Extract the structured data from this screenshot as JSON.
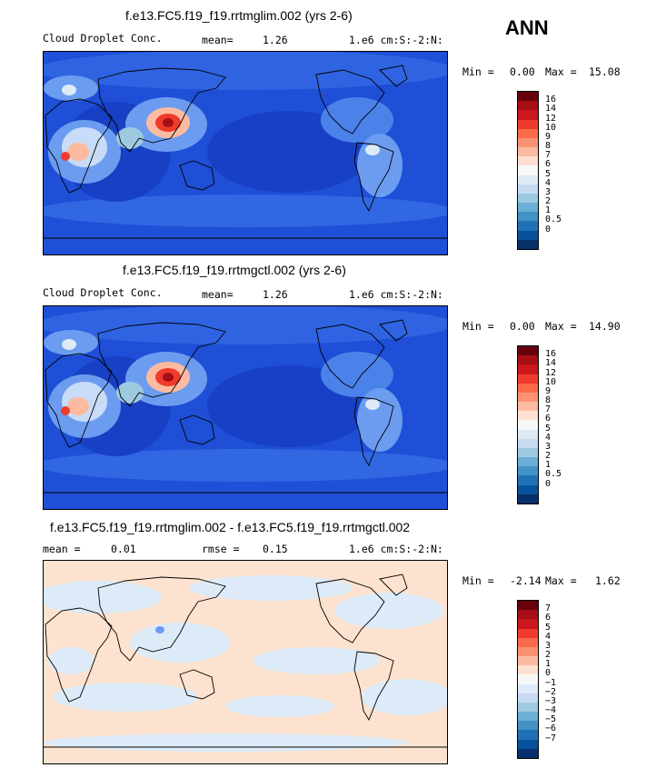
{
  "season": "ANN",
  "panels": [
    {
      "title": "f.e13.FC5.f19_f19.rrtmglim.002 (yrs 2-6)",
      "variable": "Cloud Droplet Conc.",
      "mean_label": "mean=",
      "mean_value": "1.26",
      "units": "1.e6 cm:S:-2:N:",
      "min_label": "Min =",
      "min_value": "0.00",
      "max_label": "Max =",
      "max_value": "15.08",
      "colorbar_labels": [
        "16",
        "14",
        "12",
        "10",
        "9",
        "8",
        "7",
        "6",
        "5",
        "4",
        "3",
        "2",
        "1",
        "0.5",
        "0"
      ]
    },
    {
      "title": "f.e13.FC5.f19_f19.rrtmgctl.002 (yrs 2-6)",
      "variable": "Cloud Droplet Conc.",
      "mean_label": "mean=",
      "mean_value": "1.26",
      "units": "1.e6 cm:S:-2:N:",
      "min_label": "Min =",
      "min_value": "0.00",
      "max_label": "Max =",
      "max_value": "14.90",
      "colorbar_labels": [
        "16",
        "14",
        "12",
        "10",
        "9",
        "8",
        "7",
        "6",
        "5",
        "4",
        "3",
        "2",
        "1",
        "0.5",
        "0"
      ]
    },
    {
      "title": "f.e13.FC5.f19_f19.rrtmglim.002 - f.e13.FC5.f19_f19.rrtmgctl.002",
      "mean_label": "mean =",
      "mean_value": "0.01",
      "rmse_label": "rmse =",
      "rmse_value": "0.15",
      "units": "1.e6 cm:S:-2:N:",
      "min_label": "Min =",
      "min_value": "-2.14",
      "max_label": "Max =",
      "max_value": "1.62",
      "colorbar_labels": [
        "7",
        "6",
        "5",
        "4",
        "3",
        "2",
        "1",
        "0",
        "−1",
        "−2",
        "−3",
        "−4",
        "−5",
        "−6",
        "−7"
      ]
    }
  ],
  "colors": {
    "scale": [
      "#67000d",
      "#a50f15",
      "#cb181d",
      "#ef3b2c",
      "#fb6a4a",
      "#fc9272",
      "#fcbba1",
      "#fee0d2",
      "#f7f7f7",
      "#deebf7",
      "#c6dbef",
      "#9ecae1",
      "#6baed6",
      "#4292c6",
      "#2171b5",
      "#08519c",
      "#08306b"
    ],
    "map_base": "#1e4fd6",
    "diff_base": "#fde3cf",
    "diff_alt": "#dcebf7"
  },
  "chart_data": [
    {
      "type": "heatmap",
      "title": "f.e13.FC5.f19_f19.rrtmglim.002 (yrs 2-6)",
      "variable": "Cloud Droplet Conc.",
      "units": "1.e6 cm:S:-2:N:",
      "mean": 1.26,
      "min": 0.0,
      "max": 15.08,
      "levels": [
        0,
        0.5,
        1,
        2,
        3,
        4,
        5,
        6,
        7,
        8,
        9,
        10,
        12,
        14,
        16
      ]
    },
    {
      "type": "heatmap",
      "title": "f.e13.FC5.f19_f19.rrtmgctl.002 (yrs 2-6)",
      "variable": "Cloud Droplet Conc.",
      "units": "1.e6 cm:S:-2:N:",
      "mean": 1.26,
      "min": 0.0,
      "max": 14.9,
      "levels": [
        0,
        0.5,
        1,
        2,
        3,
        4,
        5,
        6,
        7,
        8,
        9,
        10,
        12,
        14,
        16
      ]
    },
    {
      "type": "heatmap",
      "title": "f.e13.FC5.f19_f19.rrtmglim.002 - f.e13.FC5.f19_f19.rrtmgctl.002",
      "units": "1.e6 cm:S:-2:N:",
      "mean": 0.01,
      "rmse": 0.15,
      "min": -2.14,
      "max": 1.62,
      "levels": [
        -7,
        -6,
        -5,
        -4,
        -3,
        -2,
        -1,
        0,
        1,
        2,
        3,
        4,
        5,
        6,
        7
      ]
    }
  ]
}
